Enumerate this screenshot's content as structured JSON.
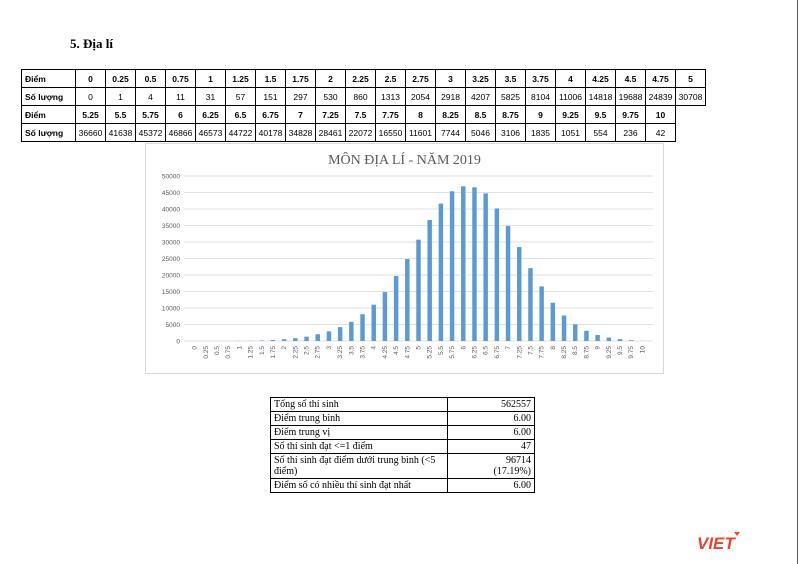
{
  "heading": "5.  Địa lí",
  "table": {
    "label_score": "Điểm",
    "label_count": "Số lượng",
    "row1_scores": [
      "0",
      "0.25",
      "0.5",
      "0.75",
      "1",
      "1.25",
      "1.5",
      "1.75",
      "2",
      "2.25",
      "2.5",
      "2.75",
      "3",
      "3.25",
      "3.5",
      "3.75",
      "4",
      "4.25",
      "4.5",
      "4.75",
      "5"
    ],
    "row1_counts": [
      "0",
      "1",
      "4",
      "11",
      "31",
      "57",
      "151",
      "297",
      "530",
      "860",
      "1313",
      "2054",
      "2918",
      "4207",
      "5825",
      "8104",
      "11006",
      "14818",
      "19688",
      "24839",
      "30708"
    ],
    "row2_scores": [
      "5.25",
      "5.5",
      "5.75",
      "6",
      "6.25",
      "6.5",
      "6.75",
      "7",
      "7.25",
      "7.5",
      "7.75",
      "8",
      "8.25",
      "8.5",
      "8.75",
      "9",
      "9.25",
      "9.5",
      "9.75",
      "10"
    ],
    "row2_counts": [
      "36660",
      "41638",
      "45372",
      "46866",
      "46573",
      "44722",
      "40178",
      "34828",
      "28461",
      "22072",
      "16550",
      "11601",
      "7744",
      "5046",
      "3106",
      "1835",
      "1051",
      "554",
      "236",
      "42"
    ]
  },
  "chart_data": {
    "type": "bar",
    "title": "MÔN ĐỊA LÍ - NĂM 2019",
    "categories": [
      "0",
      "0.25",
      "0.5",
      "0.75",
      "1",
      "1.25",
      "1.5",
      "1.75",
      "2",
      "2.25",
      "2.5",
      "2.75",
      "3",
      "3.25",
      "3.5",
      "3.75",
      "4",
      "4.25",
      "4.5",
      "4.75",
      "5",
      "5.25",
      "5.5",
      "5.75",
      "6",
      "6.25",
      "6.5",
      "6.75",
      "7",
      "7.25",
      "7.5",
      "7.75",
      "8",
      "8.25",
      "8.5",
      "8.75",
      "9",
      "9.25",
      "9.5",
      "9.75",
      "10"
    ],
    "values": [
      0,
      1,
      4,
      11,
      31,
      57,
      151,
      297,
      530,
      860,
      1313,
      2054,
      2918,
      4207,
      5825,
      8104,
      11006,
      14818,
      19688,
      24839,
      30708,
      36660,
      41638,
      45372,
      46866,
      46573,
      44722,
      40178,
      34828,
      28461,
      22072,
      16550,
      11601,
      7744,
      5046,
      3106,
      1835,
      1051,
      554,
      236,
      42
    ],
    "ylim": [
      0,
      50000
    ],
    "yticks": [
      0,
      5000,
      10000,
      15000,
      20000,
      25000,
      30000,
      35000,
      40000,
      45000,
      50000
    ],
    "bar_color": "#5b9bd5",
    "grid": true,
    "legend": "none"
  },
  "stats": [
    {
      "label": "Tổng số thí sinh",
      "value": "562557"
    },
    {
      "label": "Điểm trung bình",
      "value": "6.00"
    },
    {
      "label": "Điểm trung vị",
      "value": "6.00"
    },
    {
      "label": "Số thí sinh đạt <=1 điểm",
      "value": "47"
    },
    {
      "label": "Số thí sinh đạt điểm dưới trung bình (<5 điểm)",
      "value": "96714",
      "value2": "(17.19%)"
    },
    {
      "label": "Điểm số có nhiều thí sinh đạt nhất",
      "value": "6.00"
    }
  ],
  "logo": {
    "text": "VIET",
    "color": "#e8452c"
  }
}
